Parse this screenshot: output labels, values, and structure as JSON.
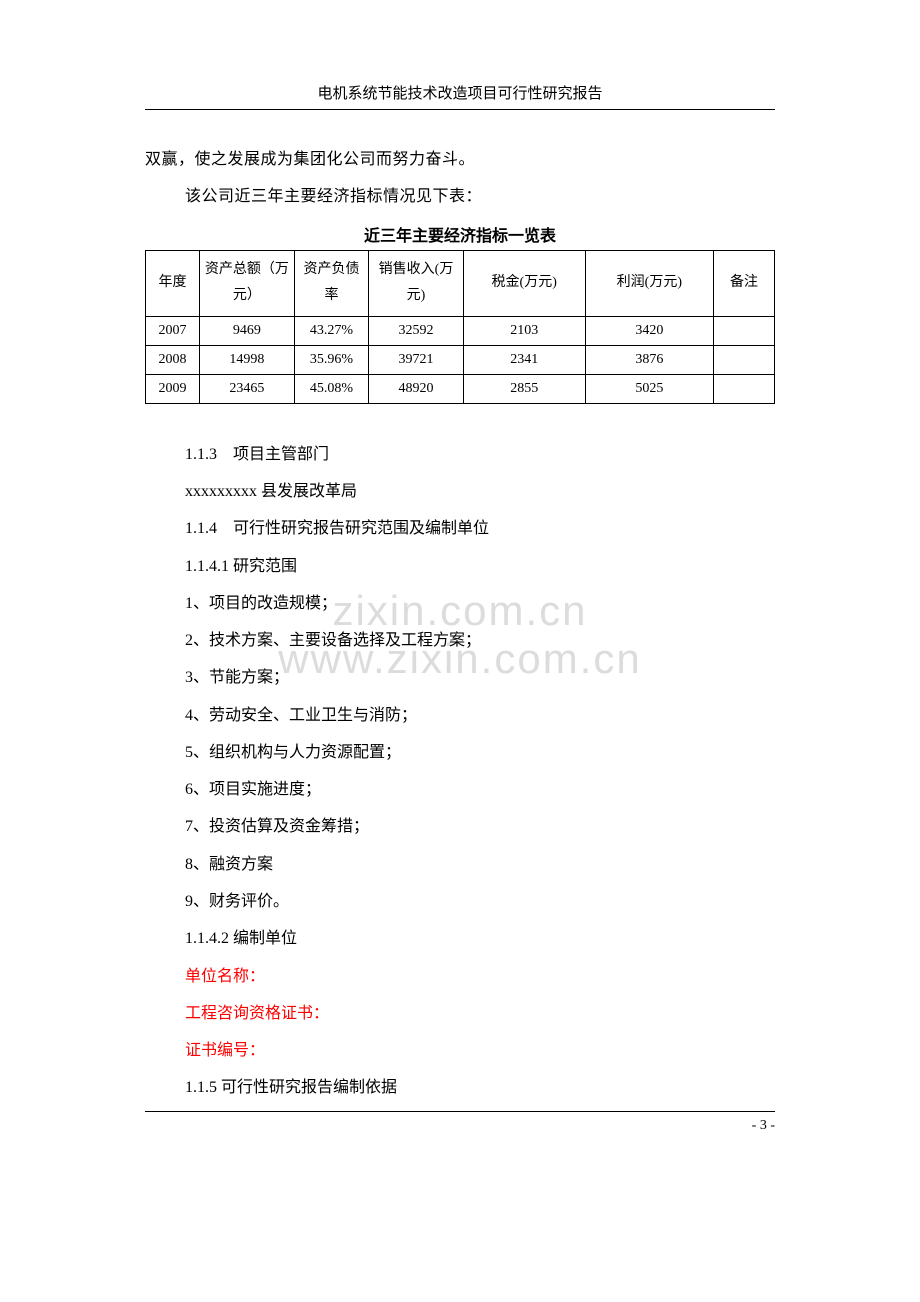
{
  "header": {
    "title": "电机系统节能技术改造项目可行性研究报告"
  },
  "intro": {
    "line1": "双赢，使之发展成为集团化公司而努力奋斗。",
    "line2": "该公司近三年主要经济指标情况见下表："
  },
  "table": {
    "title": "近三年主要经济指标一览表",
    "headers": {
      "year": "年度",
      "asset": "资产总额（万元）",
      "ratio": "资产负债率",
      "sales": "销售收入(万元)",
      "tax": "税金(万元)",
      "profit": "利润(万元)",
      "note": "备注"
    },
    "rows": [
      {
        "year": "2007",
        "asset": "9469",
        "ratio": "43.27%",
        "sales": "32592",
        "tax": "2103",
        "profit": "3420",
        "note": ""
      },
      {
        "year": "2008",
        "asset": "14998",
        "ratio": "35.96%",
        "sales": "39721",
        "tax": "2341",
        "profit": "3876",
        "note": ""
      },
      {
        "year": "2009",
        "asset": "23465",
        "ratio": "45.08%",
        "sales": "48920",
        "tax": "2855",
        "profit": "5025",
        "note": ""
      }
    ],
    "border_color": "#000000",
    "font_size": 14
  },
  "sections": {
    "s1_1_3_title": "1.1.3　项目主管部门",
    "s1_1_3_body": "xxxxxxxxx 县发展改革局",
    "s1_1_4_title": "1.1.4　可行性研究报告研究范围及编制单位",
    "s1_1_4_1_title": "1.1.4.1 研究范围",
    "scope": [
      "1、项目的改造规模；",
      "2、技术方案、主要设备选择及工程方案；",
      "3、节能方案；",
      "4、劳动安全、工业卫生与消防；",
      "5、组织机构与人力资源配置；",
      "6、项目实施进度；",
      "7、投资估算及资金筹措；",
      "8、融资方案",
      "9、财务评价。"
    ],
    "s1_1_4_2_title": "1.1.4.2 编制单位",
    "unit_name": "单位名称：",
    "cert": "工程咨询资格证书：",
    "cert_no": "证书编号：",
    "s1_1_5_title": "1.1.5 可行性研究报告编制依据"
  },
  "watermark": {
    "text_top": "zixin.com.cn",
    "text_bottom": "www.zixin.com.cn"
  },
  "footer": {
    "page_number": "- 3 -"
  },
  "colors": {
    "text": "#000000",
    "red": "#ff0000",
    "watermark": "#dcdcdc",
    "background": "#ffffff"
  }
}
